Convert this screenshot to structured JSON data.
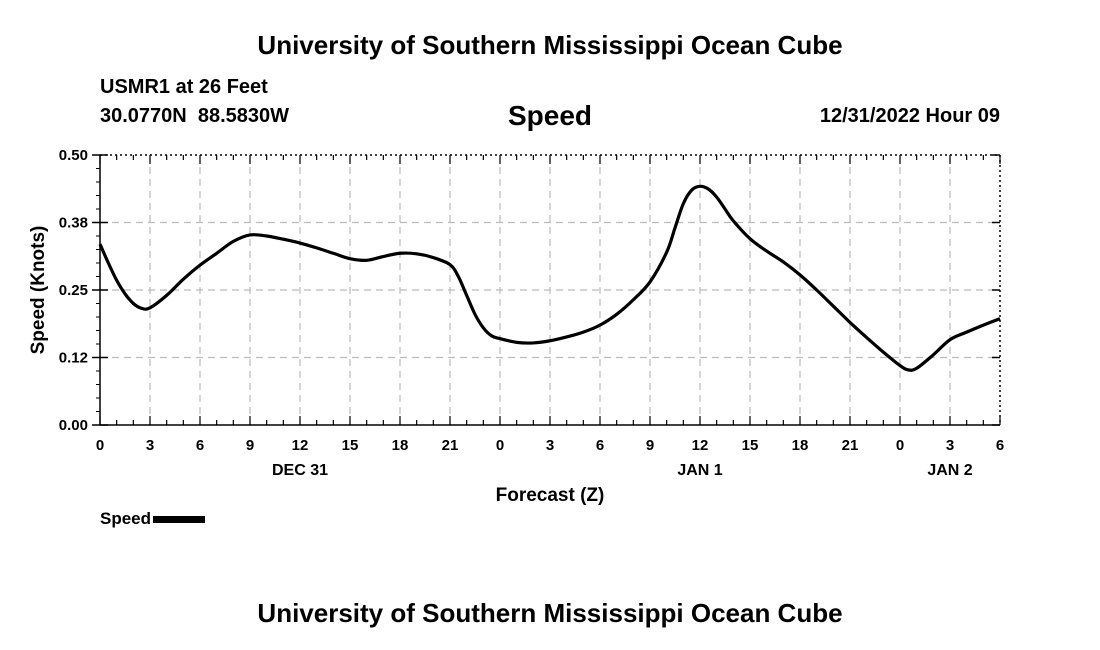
{
  "page": {
    "title": "University of Southern Mississippi Ocean Cube",
    "footer_title": "University of Southern Mississippi Ocean Cube",
    "station": "USMR1 at 26 Feet",
    "coords": "30.0770N  88.5830W",
    "variable": "Speed",
    "datetime": "12/31/2022 Hour 09"
  },
  "chart_data": {
    "type": "line",
    "title": "Speed",
    "xlabel": "Forecast (Z)",
    "ylabel": "Speed (Knots)",
    "xlim": [
      0,
      54
    ],
    "ylim": [
      0,
      0.5
    ],
    "y_ticks": [
      "0.00",
      "0.12",
      "0.25",
      "0.38",
      "0.50"
    ],
    "y_tick_values": [
      0,
      0.125,
      0.25,
      0.375,
      0.5
    ],
    "x_ticks": [
      0,
      3,
      6,
      9,
      12,
      15,
      18,
      21,
      24,
      27,
      30,
      33,
      36,
      39,
      42,
      45,
      48,
      51,
      54
    ],
    "x_tick_labels": [
      "0",
      "3",
      "6",
      "9",
      "12",
      "15",
      "18",
      "21",
      "0",
      "3",
      "6",
      "9",
      "12",
      "15",
      "18",
      "21",
      "0",
      "3",
      "6"
    ],
    "date_labels": [
      {
        "x": 12,
        "label": "DEC 31"
      },
      {
        "x": 36,
        "label": "JAN 1"
      },
      {
        "x": 51,
        "label": "JAN 2"
      }
    ],
    "grid": true,
    "legend": "bottom-left",
    "series": [
      {
        "name": "Speed",
        "color": "#000000",
        "x": [
          0,
          0.5,
          1,
          1.5,
          2,
          2.5,
          3,
          4,
          5,
          6,
          7,
          8,
          9,
          10,
          11,
          12,
          13,
          14,
          15,
          16,
          17,
          18,
          19,
          20,
          21,
          21.5,
          22,
          22.5,
          23,
          23.5,
          24,
          25,
          26,
          27,
          28,
          29,
          30,
          31,
          32,
          33,
          34,
          34.5,
          35,
          35.5,
          36,
          36.5,
          37,
          37.5,
          38,
          39,
          40,
          41,
          42,
          43,
          44,
          45,
          46,
          47,
          48,
          48.5,
          49,
          50,
          51,
          52,
          53,
          54
        ],
        "y": [
          0.335,
          0.3,
          0.268,
          0.243,
          0.225,
          0.216,
          0.217,
          0.24,
          0.27,
          0.296,
          0.318,
          0.34,
          0.352,
          0.35,
          0.344,
          0.337,
          0.328,
          0.318,
          0.308,
          0.305,
          0.312,
          0.318,
          0.317,
          0.31,
          0.297,
          0.275,
          0.24,
          0.205,
          0.18,
          0.165,
          0.16,
          0.153,
          0.152,
          0.156,
          0.163,
          0.172,
          0.185,
          0.205,
          0.232,
          0.265,
          0.32,
          0.365,
          0.41,
          0.435,
          0.442,
          0.437,
          0.422,
          0.4,
          0.378,
          0.345,
          0.322,
          0.302,
          0.278,
          0.25,
          0.22,
          0.19,
          0.162,
          0.135,
          0.11,
          0.102,
          0.105,
          0.13,
          0.158,
          0.172,
          0.185,
          0.197
        ]
      }
    ]
  }
}
